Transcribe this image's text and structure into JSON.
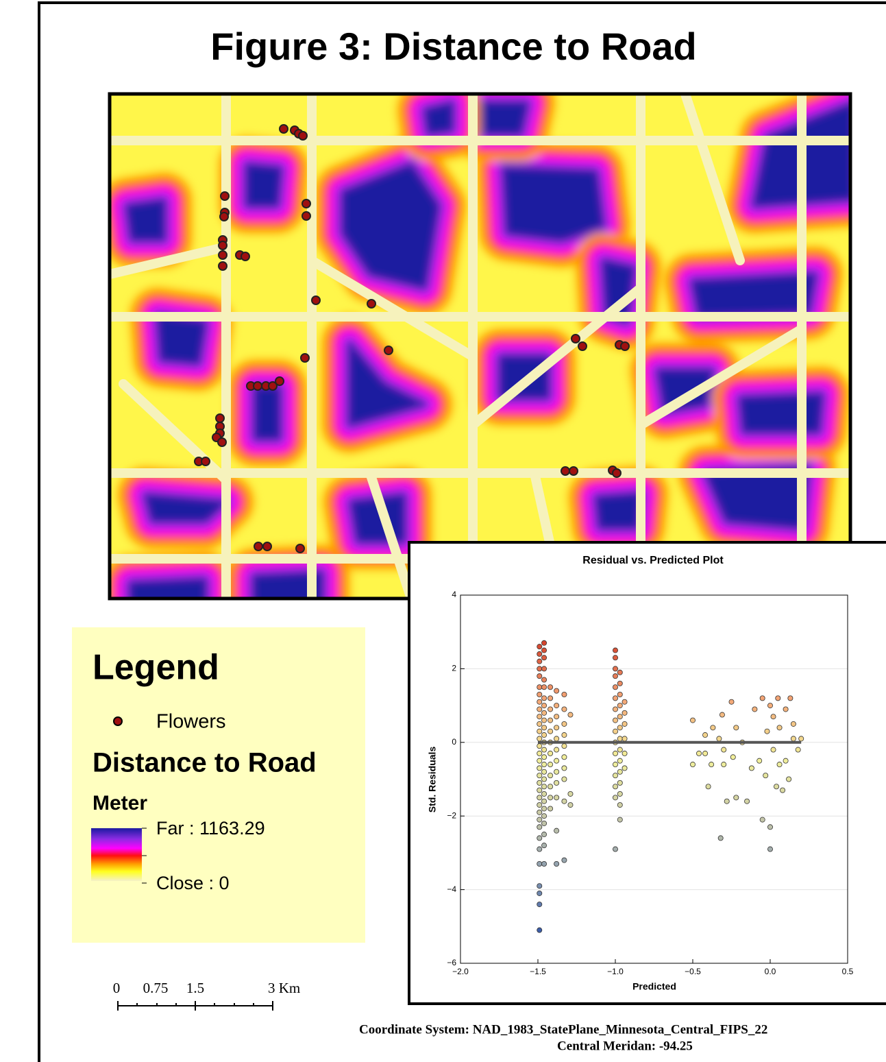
{
  "title": "Figure 3: Distance to Road",
  "legend": {
    "title": "Legend",
    "items": [
      {
        "label": "Flowers"
      }
    ],
    "layer": "Distance to Road",
    "unit": "Meter",
    "high": "Far : 1163.29",
    "low": "Close : 0"
  },
  "scale_bar": {
    "labels": [
      "0",
      "0.75",
      "1.5",
      "3 Km"
    ]
  },
  "footer": [
    "Coordinate System: NAD_1983_StatePlane_Minnesota_Central_FIPS_22",
    "Central Meridan: -94.25"
  ],
  "chart_data": {
    "type": "scatter",
    "title": "Residual vs. Predicted Plot",
    "x_label": "Predicted",
    "y_label": "Std. Residuals",
    "xlim": [
      -2,
      0.5
    ],
    "ylim": [
      -6,
      4
    ],
    "xticks": [
      {
        "value": -2,
        "label": "−2.0"
      },
      {
        "value": -1.5,
        "label": "−1.5"
      },
      {
        "value": -1,
        "label": "−1.0"
      },
      {
        "value": -0.5,
        "label": "−0.5"
      },
      {
        "value": 0,
        "label": "0.0"
      },
      {
        "value": 0.5,
        "label": "0.5"
      }
    ],
    "yticks": [
      {
        "value": -6,
        "label": "−6"
      },
      {
        "value": -4,
        "label": "−4"
      },
      {
        "value": -2,
        "label": "−2"
      },
      0,
      2,
      4
    ],
    "grid": true,
    "colormap": [
      "#3d5ea8",
      "#8a9cb0",
      "#c9c9a8",
      "#f2f09a",
      "#f4a878",
      "#d5452e"
    ],
    "fit_line": {
      "x": [
        -1.5,
        0.2
      ],
      "y": [
        0,
        0
      ]
    },
    "x": [
      -1.49,
      -1.49,
      -1.49,
      -1.49,
      -1.49,
      -1.49,
      -1.49,
      -1.49,
      -1.49,
      -1.49,
      -1.49,
      -1.49,
      -1.49,
      -1.49,
      -1.49,
      -1.49,
      -1.49,
      -1.49,
      -1.49,
      -1.49,
      -1.49,
      -1.49,
      -1.49,
      -1.49,
      -1.49,
      -1.49,
      -1.49,
      -1.49,
      -1.49,
      -1.49,
      -1.49,
      -1.49,
      -1.46,
      -1.46,
      -1.46,
      -1.46,
      -1.46,
      -1.46,
      -1.46,
      -1.46,
      -1.46,
      -1.46,
      -1.46,
      -1.46,
      -1.46,
      -1.46,
      -1.46,
      -1.46,
      -1.46,
      -1.46,
      -1.46,
      -1.46,
      -1.46,
      -1.46,
      -1.46,
      -1.46,
      -1.46,
      -1.46,
      -1.46,
      -1.42,
      -1.42,
      -1.42,
      -1.42,
      -1.42,
      -1.42,
      -1.42,
      -1.42,
      -1.42,
      -1.42,
      -1.42,
      -1.42,
      -1.38,
      -1.38,
      -1.38,
      -1.38,
      -1.38,
      -1.38,
      -1.38,
      -1.38,
      -1.38,
      -1.38,
      -1.38,
      -1.38,
      -1.33,
      -1.33,
      -1.33,
      -1.33,
      -1.33,
      -1.33,
      -1.33,
      -1.33,
      -1.33,
      -1.33,
      -1.29,
      -1.29,
      -1.29,
      -1.0,
      -1.0,
      -1.0,
      -1.0,
      -1.0,
      -1.0,
      -1.0,
      -1.0,
      -1.0,
      -1.0,
      -1.0,
      -1.0,
      -1.0,
      -1.0,
      -1.0,
      -1.0,
      -0.97,
      -0.97,
      -0.97,
      -0.97,
      -0.97,
      -0.97,
      -0.97,
      -0.97,
      -0.97,
      -0.97,
      -0.97,
      -0.97,
      -0.97,
      -0.97,
      -0.94,
      -0.94,
      -0.94,
      -0.94,
      -0.94,
      -0.94,
      -0.5,
      -0.5,
      -0.46,
      -0.42,
      -0.42,
      -0.38,
      -0.4,
      -0.37,
      -0.33,
      -0.31,
      -0.3,
      -0.3,
      -0.28,
      -0.32,
      -0.25,
      -0.24,
      -0.22,
      -0.22,
      -0.18,
      -0.15,
      -0.12,
      -0.1,
      -0.07,
      -0.05,
      -0.05,
      -0.03,
      -0.02,
      0.0,
      0.0,
      0.02,
      0.02,
      0.04,
      0.05,
      0.06,
      0.06,
      0.08,
      0.0,
      0.1,
      0.1,
      0.12,
      0.13,
      0.15,
      0.15,
      0.18,
      0.2
    ],
    "y": [
      2.6,
      2.4,
      2.2,
      2.0,
      1.8,
      1.5,
      1.3,
      1.1,
      0.9,
      0.7,
      0.5,
      0.3,
      0.1,
      -0.1,
      -0.3,
      -0.5,
      -0.7,
      -0.9,
      -1.1,
      -1.3,
      -1.5,
      -1.7,
      -1.9,
      -2.1,
      -2.3,
      -2.6,
      -2.9,
      -3.3,
      -3.9,
      -4.1,
      -4.4,
      -5.1,
      2.7,
      2.5,
      2.3,
      2.0,
      1.7,
      1.5,
      1.2,
      1.0,
      0.8,
      0.6,
      0.4,
      0.2,
      0.0,
      -0.2,
      -0.4,
      -0.6,
      -0.8,
      -1.0,
      -1.2,
      -1.4,
      -1.6,
      -1.8,
      -2.0,
      -2.2,
      -2.5,
      -2.8,
      -3.3,
      1.5,
      1.2,
      0.9,
      0.6,
      0.3,
      0.0,
      -0.3,
      -0.6,
      -0.9,
      -1.2,
      -1.5,
      -1.8,
      1.4,
      1.0,
      0.7,
      0.4,
      0.1,
      -0.2,
      -0.5,
      -0.8,
      -1.1,
      -1.5,
      -2.4,
      -3.3,
      1.3,
      0.9,
      0.5,
      0.2,
      -0.1,
      -0.4,
      -0.7,
      -1.0,
      -1.6,
      -3.2,
      0.75,
      -1.4,
      -1.7,
      2.5,
      2.3,
      2.0,
      1.8,
      1.5,
      1.2,
      0.9,
      0.6,
      0.3,
      0.0,
      -0.3,
      -0.6,
      -0.9,
      -1.2,
      -1.5,
      -2.9,
      1.9,
      1.6,
      1.3,
      1.0,
      0.7,
      0.4,
      0.1,
      -0.2,
      -0.5,
      -0.8,
      -1.1,
      -1.4,
      -1.7,
      -2.1,
      1.1,
      0.8,
      0.5,
      0.1,
      -0.3,
      -0.7,
      0.6,
      -0.6,
      -0.3,
      -0.3,
      0.2,
      -0.6,
      -1.2,
      0.4,
      0.1,
      0.75,
      -0.2,
      -0.6,
      -1.6,
      -2.6,
      1.1,
      -0.4,
      0.4,
      -1.5,
      0.0,
      -1.6,
      -0.7,
      0.9,
      -0.5,
      1.2,
      -2.1,
      -0.9,
      0.3,
      1.0,
      -2.3,
      0.7,
      -0.2,
      -1.2,
      1.2,
      0.4,
      -0.6,
      -1.3,
      -2.9,
      0.9,
      -0.5,
      -1.0,
      1.2,
      0.5,
      0.1,
      -0.2,
      0.1
    ]
  }
}
